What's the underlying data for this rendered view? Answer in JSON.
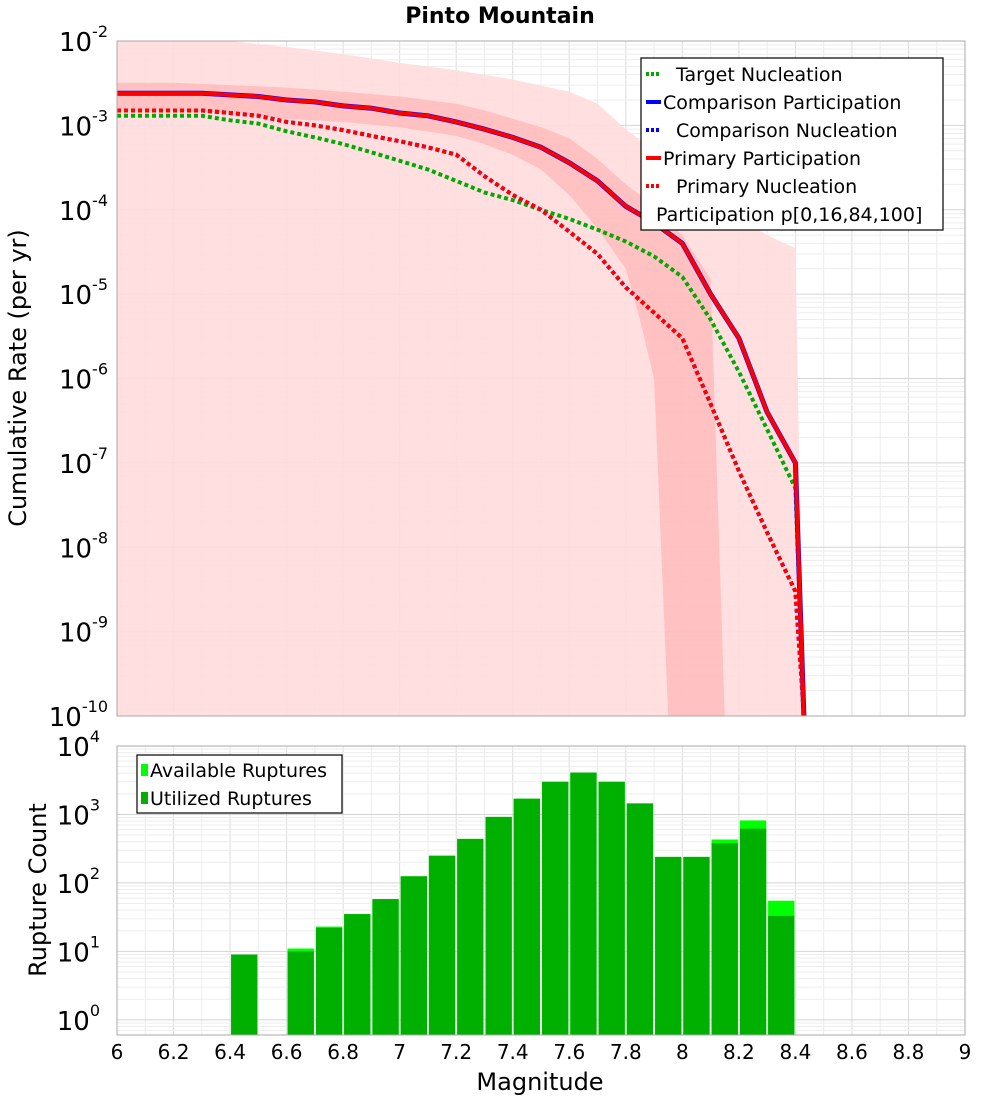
{
  "title": "Pinto Mountain",
  "chart_data": [
    {
      "type": "line",
      "title": "Pinto Mountain",
      "xlabel": "",
      "ylabel": "Cumulative Rate (per yr)",
      "xlim": [
        6,
        9
      ],
      "ylim": [
        1e-10,
        0.01
      ],
      "yscale": "log",
      "grid": true,
      "legend_position": "top-right",
      "yticks": [
        {
          "base": "10",
          "exp": "-2",
          "value": 0.01
        },
        {
          "base": "10",
          "exp": "-3",
          "value": 0.001
        },
        {
          "base": "10",
          "exp": "-4",
          "value": 0.0001
        },
        {
          "base": "10",
          "exp": "-5",
          "value": 1e-05
        },
        {
          "base": "10",
          "exp": "-6",
          "value": 1e-06
        },
        {
          "base": "10",
          "exp": "-7",
          "value": 1e-07
        },
        {
          "base": "10",
          "exp": "-8",
          "value": 1e-08
        },
        {
          "base": "10",
          "exp": "-9",
          "value": 1e-09
        },
        {
          "base": "10",
          "exp": "-10",
          "value": 1e-10
        }
      ],
      "legend": [
        {
          "label": "Target Nucleation",
          "color": "#00aa00",
          "style": "dotted"
        },
        {
          "label": "Comparison Participation",
          "color": "#0000ff",
          "style": "solid"
        },
        {
          "label": "Comparison Nucleation",
          "color": "#0000ff",
          "style": "dotted"
        },
        {
          "label": "Primary Participation",
          "color": "#ff0000",
          "style": "solid"
        },
        {
          "label": "Primary Nucleation",
          "color": "#ff0000",
          "style": "dotted"
        },
        {
          "label": "Participation p[0,16,84,100]",
          "color": "#ffc8c8",
          "style": "band"
        }
      ],
      "series": [
        {
          "name": "Target Nucleation",
          "color": "#00aa00",
          "style": "dotted",
          "x": [
            6.0,
            6.1,
            6.2,
            6.3,
            6.4,
            6.5,
            6.6,
            6.7,
            6.8,
            6.9,
            7.0,
            7.1,
            7.2,
            7.3,
            7.4,
            7.5,
            7.6,
            7.7,
            7.8,
            7.9,
            8.0,
            8.1,
            8.2,
            8.3,
            8.4,
            8.43
          ],
          "y": [
            0.0013,
            0.0013,
            0.0013,
            0.0013,
            0.00115,
            0.00105,
            0.00085,
            0.00072,
            0.0006,
            0.00048,
            0.00038,
            0.0003,
            0.00022,
            0.00016,
            0.00013,
            0.0001,
            7.8e-05,
            5.8e-05,
            4.2e-05,
            2.8e-05,
            1.6e-05,
            5e-06,
            1.2e-06,
            2.5e-07,
            5e-08,
            1e-10
          ]
        },
        {
          "name": "Comparison Participation",
          "color": "#0000ff",
          "style": "solid",
          "x": [
            6.0,
            6.1,
            6.2,
            6.3,
            6.4,
            6.5,
            6.6,
            6.7,
            6.8,
            6.9,
            7.0,
            7.1,
            7.2,
            7.3,
            7.4,
            7.5,
            7.6,
            7.7,
            7.8,
            7.9,
            8.0,
            8.1,
            8.2,
            8.3,
            8.4,
            8.43
          ],
          "y": [
            0.0024,
            0.0024,
            0.0024,
            0.0024,
            0.0023,
            0.0022,
            0.002,
            0.0019,
            0.0017,
            0.0016,
            0.0014,
            0.0013,
            0.0011,
            0.0009,
            0.00072,
            0.00055,
            0.00036,
            0.00022,
            0.00011,
            7e-05,
            4e-05,
            1e-05,
            3e-06,
            4e-07,
            1e-07,
            1e-10
          ]
        },
        {
          "name": "Primary Participation",
          "color": "#ff0000",
          "style": "solid",
          "x": [
            6.0,
            6.1,
            6.2,
            6.3,
            6.4,
            6.5,
            6.6,
            6.7,
            6.8,
            6.9,
            7.0,
            7.1,
            7.2,
            7.3,
            7.4,
            7.5,
            7.6,
            7.7,
            7.8,
            7.9,
            8.0,
            8.1,
            8.2,
            8.3,
            8.4,
            8.43
          ],
          "y": [
            0.0024,
            0.0024,
            0.0024,
            0.0024,
            0.0023,
            0.0022,
            0.002,
            0.0019,
            0.0017,
            0.0016,
            0.0014,
            0.0013,
            0.0011,
            0.0009,
            0.00072,
            0.00055,
            0.00036,
            0.00022,
            0.00011,
            7e-05,
            4e-05,
            1e-05,
            3e-06,
            4e-07,
            1e-07,
            1e-10
          ]
        },
        {
          "name": "Comparison Nucleation",
          "color": "#0000ff",
          "style": "dotted",
          "x": [
            6.0,
            6.1,
            6.2,
            6.3,
            6.4,
            6.5,
            6.6,
            6.7,
            6.8,
            6.9,
            7.0,
            7.1,
            7.2,
            7.3,
            7.4,
            7.5,
            7.6,
            7.7,
            7.8,
            7.9,
            8.0,
            8.1,
            8.2,
            8.3,
            8.4,
            8.43
          ],
          "y": [
            0.0015,
            0.0015,
            0.0015,
            0.0015,
            0.0014,
            0.0013,
            0.0011,
            0.001,
            0.00088,
            0.00075,
            0.00065,
            0.00055,
            0.00045,
            0.00025,
            0.00015,
            0.0001,
            5.5e-05,
            3e-05,
            1.2e-05,
            6e-06,
            3e-06,
            5e-07,
            8e-08,
            1.5e-08,
            3e-09,
            1e-10
          ]
        },
        {
          "name": "Primary Nucleation",
          "color": "#ff0000",
          "style": "dotted",
          "x": [
            6.0,
            6.1,
            6.2,
            6.3,
            6.4,
            6.5,
            6.6,
            6.7,
            6.8,
            6.9,
            7.0,
            7.1,
            7.2,
            7.3,
            7.4,
            7.5,
            7.6,
            7.7,
            7.8,
            7.9,
            8.0,
            8.1,
            8.2,
            8.3,
            8.4,
            8.43
          ],
          "y": [
            0.0015,
            0.0015,
            0.0015,
            0.0015,
            0.0014,
            0.0013,
            0.0011,
            0.001,
            0.00088,
            0.00075,
            0.00065,
            0.00055,
            0.00045,
            0.00025,
            0.00015,
            0.0001,
            5.5e-05,
            3e-05,
            1.2e-05,
            6e-06,
            3e-06,
            5e-07,
            8e-08,
            1.5e-08,
            3e-09,
            1e-10
          ]
        }
      ],
      "bands": [
        {
          "name": "p0-p100",
          "color": "#ffdcdc",
          "x": [
            6.0,
            6.2,
            6.4,
            6.6,
            6.8,
            7.0,
            7.2,
            7.4,
            7.6,
            7.7,
            7.8,
            7.9,
            7.94,
            8.0,
            8.1,
            8.2,
            8.3,
            8.4,
            8.43
          ],
          "upper": [
            0.011,
            0.011,
            0.01,
            0.0085,
            0.007,
            0.0055,
            0.0045,
            0.0035,
            0.0025,
            0.0018,
            0.0009,
            0.0005,
            0.00035,
            0.0002,
            0.00012,
            8e-05,
            5e-05,
            3.5e-05,
            1e-10
          ],
          "lower": [
            1e-10,
            1e-10,
            1e-10,
            1e-10,
            1e-10,
            1e-10,
            1e-10,
            1e-10,
            1e-10,
            1e-10,
            1e-10,
            1e-10,
            1e-10,
            1e-10,
            1e-10,
            1e-10,
            1e-10,
            1e-10,
            1e-10
          ]
        },
        {
          "name": "p16-p84",
          "color": "#ffa8a8",
          "x": [
            6.0,
            6.2,
            6.4,
            6.6,
            6.8,
            7.0,
            7.2,
            7.3,
            7.4,
            7.5,
            7.6,
            7.7,
            7.8,
            7.85,
            7.9,
            7.95,
            8.0,
            8.1,
            8.15
          ],
          "upper": [
            0.0032,
            0.0032,
            0.003,
            0.0028,
            0.0025,
            0.0022,
            0.0018,
            0.0015,
            0.0012,
            0.00095,
            0.0007,
            0.0004,
            0.0002,
            0.00015,
            0.0001,
            7e-05,
            5e-05,
            1.5e-05,
            1e-10
          ],
          "lower": [
            0.0015,
            0.0015,
            0.0014,
            0.0012,
            0.0011,
            0.00095,
            0.00075,
            0.0006,
            0.00045,
            0.0003,
            0.00015,
            6e-05,
            2e-05,
            5e-06,
            1e-06,
            1e-10,
            1e-10,
            1e-10,
            1e-10
          ]
        }
      ]
    },
    {
      "type": "bar",
      "xlabel": "Magnitude",
      "ylabel": "Rupture Count",
      "xlim": [
        6,
        9
      ],
      "ylim": [
        0.6,
        10000
      ],
      "yscale": "log",
      "grid": true,
      "legend_position": "top-left",
      "xticks": [
        "6",
        "6.2",
        "6.4",
        "6.6",
        "6.8",
        "7",
        "7.2",
        "7.4",
        "7.6",
        "7.8",
        "8",
        "8.2",
        "8.4",
        "8.6",
        "8.8",
        "9"
      ],
      "yticks": [
        {
          "base": "10",
          "exp": "4",
          "value": 10000
        },
        {
          "base": "10",
          "exp": "3",
          "value": 1000
        },
        {
          "base": "10",
          "exp": "2",
          "value": 100
        },
        {
          "base": "10",
          "exp": "1",
          "value": 10
        },
        {
          "base": "10",
          "exp": "0",
          "value": 1
        }
      ],
      "legend": [
        {
          "label": "Available Ruptures",
          "color": "#00ff00"
        },
        {
          "label": "Utilized Ruptures",
          "color": "#00b000"
        }
      ],
      "bin_width": 0.1,
      "series": [
        {
          "name": "Available Ruptures",
          "color": "#00ff00",
          "x": [
            6.45,
            6.65,
            6.75,
            6.85,
            6.95,
            7.05,
            7.15,
            7.25,
            7.35,
            7.45,
            7.55,
            7.65,
            7.75,
            7.85,
            7.95,
            8.05,
            8.15,
            8.25,
            8.35
          ],
          "values": [
            9,
            11,
            23,
            35,
            58,
            125,
            250,
            440,
            920,
            1700,
            3000,
            4100,
            3000,
            1450,
            240,
            240,
            430,
            820,
            55
          ]
        },
        {
          "name": "Utilized Ruptures",
          "color": "#00b000",
          "x": [
            6.45,
            6.65,
            6.75,
            6.85,
            6.95,
            7.05,
            7.15,
            7.25,
            7.35,
            7.45,
            7.55,
            7.65,
            7.75,
            7.85,
            7.95,
            8.05,
            8.15,
            8.25,
            8.35
          ],
          "values": [
            9,
            10,
            22,
            35,
            58,
            125,
            250,
            440,
            920,
            1700,
            3000,
            4100,
            3000,
            1450,
            240,
            240,
            380,
            620,
            33
          ]
        }
      ]
    }
  ]
}
